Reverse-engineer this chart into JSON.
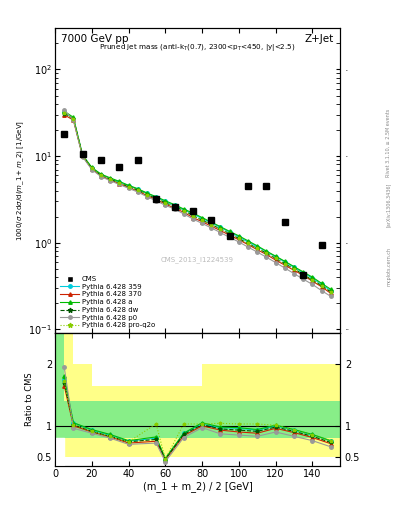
{
  "title_top": "7000 GeV pp",
  "title_right": "Z+Jet",
  "watermark": "CMS_2013_I1224539",
  "rivet_label": "Rivet 3.1.10, ≥ 2.5M events",
  "arxiv_label": "[arXiv:1306.3436]",
  "mcplots_label": "mcplots.cern.ch",
  "xlabel": "(m_1 + m_2) / 2 [GeV]",
  "ylabel_ratio": "Ratio to CMS",
  "x_cms": [
    5,
    15,
    25,
    35,
    45,
    55,
    65,
    75,
    85,
    95,
    105,
    115,
    125,
    135,
    145
  ],
  "cms_data": [
    18,
    10.5,
    9.0,
    7.5,
    9.0,
    3.2,
    2.6,
    2.3,
    1.85,
    1.2,
    4.5,
    4.5,
    1.75,
    0.42,
    0.95
  ],
  "x_mc": [
    5,
    10,
    15,
    20,
    25,
    30,
    35,
    40,
    45,
    50,
    55,
    60,
    65,
    70,
    75,
    80,
    85,
    90,
    95,
    100,
    105,
    110,
    115,
    120,
    125,
    130,
    135,
    140,
    145,
    150
  ],
  "py359_data": [
    32,
    27,
    10.2,
    7.3,
    6.1,
    5.5,
    5.0,
    4.55,
    4.15,
    3.7,
    3.35,
    3.0,
    2.7,
    2.4,
    2.15,
    1.9,
    1.7,
    1.5,
    1.32,
    1.17,
    1.02,
    0.9,
    0.79,
    0.69,
    0.6,
    0.52,
    0.45,
    0.39,
    0.33,
    0.28
  ],
  "py370_data": [
    30,
    26,
    10.0,
    7.1,
    5.9,
    5.3,
    4.8,
    4.35,
    3.95,
    3.5,
    3.15,
    2.8,
    2.5,
    2.25,
    1.95,
    1.75,
    1.55,
    1.38,
    1.22,
    1.08,
    0.95,
    0.83,
    0.73,
    0.63,
    0.55,
    0.48,
    0.42,
    0.36,
    0.31,
    0.26
  ],
  "pya_data": [
    33,
    28,
    10.3,
    7.4,
    6.2,
    5.6,
    5.1,
    4.6,
    4.2,
    3.75,
    3.4,
    3.05,
    2.75,
    2.45,
    2.2,
    1.95,
    1.73,
    1.53,
    1.35,
    1.2,
    1.05,
    0.92,
    0.8,
    0.7,
    0.61,
    0.53,
    0.46,
    0.4,
    0.34,
    0.29
  ],
  "pydw_data": [
    31,
    27,
    10.1,
    7.2,
    6.0,
    5.4,
    4.9,
    4.45,
    4.05,
    3.6,
    3.25,
    2.9,
    2.6,
    2.35,
    2.05,
    1.82,
    1.62,
    1.44,
    1.27,
    1.12,
    0.98,
    0.86,
    0.76,
    0.66,
    0.57,
    0.5,
    0.43,
    0.37,
    0.32,
    0.27
  ],
  "pyp0_data": [
    34,
    26,
    9.8,
    7.0,
    5.8,
    5.2,
    4.7,
    4.25,
    3.85,
    3.4,
    3.05,
    2.7,
    2.45,
    2.15,
    1.88,
    1.67,
    1.48,
    1.31,
    1.15,
    1.02,
    0.89,
    0.78,
    0.68,
    0.59,
    0.51,
    0.44,
    0.38,
    0.33,
    0.28,
    0.24
  ],
  "pyproq2o_data": [
    31.5,
    27,
    10.1,
    7.2,
    6.0,
    5.4,
    4.9,
    4.45,
    4.05,
    3.6,
    3.25,
    2.9,
    2.6,
    2.35,
    2.05,
    1.82,
    1.62,
    1.44,
    1.27,
    1.12,
    0.98,
    0.86,
    0.76,
    0.66,
    0.57,
    0.5,
    0.43,
    0.37,
    0.32,
    0.27
  ],
  "ratio_x": [
    5,
    10,
    20,
    30,
    40,
    55,
    60,
    70,
    80,
    90,
    100,
    110,
    120,
    130,
    140,
    150
  ],
  "ratio_359": [
    1.75,
    1.05,
    0.93,
    0.85,
    0.75,
    0.8,
    0.47,
    0.88,
    1.03,
    0.97,
    0.96,
    0.93,
    1.0,
    0.93,
    0.85,
    0.75
  ],
  "ratio_370": [
    1.65,
    1.0,
    0.9,
    0.82,
    0.72,
    0.75,
    0.45,
    0.84,
    1.0,
    0.93,
    0.9,
    0.88,
    0.96,
    0.89,
    0.81,
    0.71
  ],
  "ratio_a": [
    1.8,
    1.05,
    0.94,
    0.86,
    0.76,
    0.82,
    0.47,
    0.88,
    1.05,
    0.98,
    0.97,
    0.94,
    1.01,
    0.94,
    0.86,
    0.76
  ],
  "ratio_dw": [
    1.7,
    1.02,
    0.91,
    0.83,
    0.74,
    0.78,
    0.46,
    0.86,
    1.02,
    0.95,
    0.93,
    0.91,
    0.98,
    0.91,
    0.83,
    0.73
  ],
  "ratio_p0": [
    1.95,
    0.96,
    0.88,
    0.8,
    0.7,
    0.72,
    0.42,
    0.81,
    0.97,
    0.87,
    0.85,
    0.83,
    0.9,
    0.83,
    0.76,
    0.66
  ],
  "ratio_proq2o": [
    1.72,
    1.02,
    0.91,
    0.83,
    0.74,
    1.03,
    0.46,
    1.03,
    1.03,
    1.04,
    1.03,
    1.03,
    1.01,
    0.93,
    0.85,
    0.75
  ],
  "band_x_edges": [
    0,
    5,
    10,
    20,
    40,
    60,
    80,
    120,
    155
  ],
  "band_yellow_lo": [
    0.5,
    0.5,
    0.5,
    0.5,
    0.5,
    0.5,
    0.5,
    0.5,
    0.5
  ],
  "band_yellow_hi": [
    2.5,
    2.5,
    2.0,
    1.65,
    1.65,
    1.65,
    2.0,
    2.0,
    2.0
  ],
  "band_green_lo": [
    0.5,
    0.8,
    0.8,
    0.8,
    0.8,
    0.8,
    0.8,
    0.8,
    0.8
  ],
  "band_green_hi": [
    2.5,
    1.4,
    1.4,
    1.4,
    1.4,
    1.4,
    1.4,
    1.4,
    1.4
  ],
  "color_359": "#00ccdd",
  "color_370": "#cc2200",
  "color_a": "#00bb00",
  "color_dw": "#005500",
  "color_p0": "#999999",
  "color_proq2o": "#88cc00",
  "color_cms": "#000000",
  "ylim_main": [
    0.09,
    300
  ],
  "ylim_ratio": [
    0.35,
    2.5
  ],
  "xlim": [
    0,
    155
  ]
}
